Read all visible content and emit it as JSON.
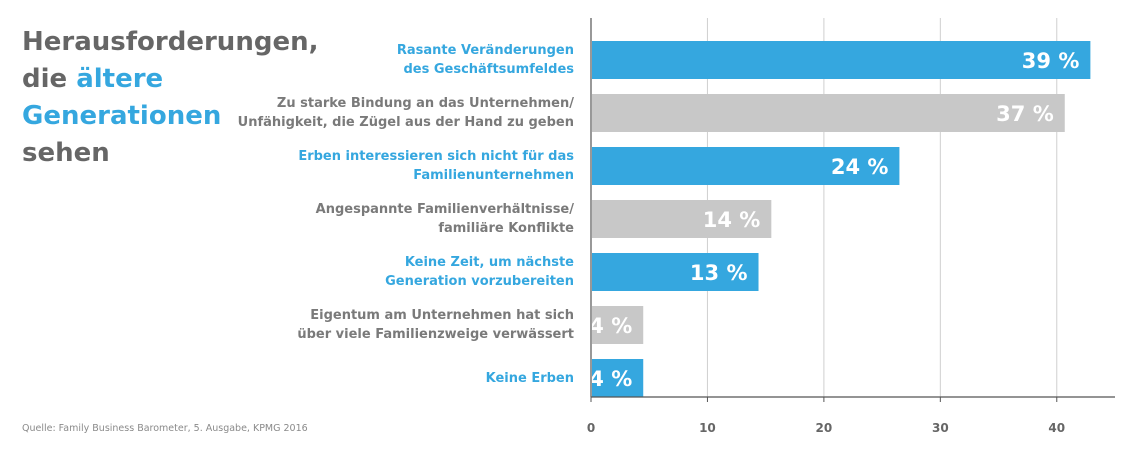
{
  "title": {
    "line1": "Herausforderungen,",
    "line2_prefix": "die ",
    "line2_accent": "ältere",
    "line3": "Generationen",
    "line4": "sehen"
  },
  "source": "Quelle: Family Business Barometer, 5. Ausgabe, KPMG 2016",
  "colors": {
    "blue": "#35a7df",
    "gray": "#c8c8c8",
    "label_gray": "#7a7a7a",
    "axis": "#555555"
  },
  "chart_data": {
    "type": "bar",
    "orientation": "horizontal",
    "title": "Herausforderungen, die ältere Generationen sehen",
    "xlim": [
      0,
      45
    ],
    "xticks": [
      0,
      10,
      20,
      30,
      40
    ],
    "xlabel": "",
    "ylabel": "",
    "bars": [
      {
        "label_lines": [
          "Rasante Veränderungen",
          "des Geschäftsumfeldes"
        ],
        "value": 39,
        "display": "39 %",
        "color": "blue",
        "bar_value": 42.8
      },
      {
        "label_lines": [
          "Zu starke Bindung an das Unternehmen/",
          "Unfähigkeit, die Zügel aus der Hand zu geben"
        ],
        "value": 37,
        "display": "37 %",
        "color": "gray",
        "bar_value": 40.6
      },
      {
        "label_lines": [
          "Erben interessieren sich nicht für das",
          "Familienunternehmen"
        ],
        "value": 24,
        "display": "24 %",
        "color": "blue",
        "bar_value": 26.4
      },
      {
        "label_lines": [
          "Angespannte Familienverhältnisse/",
          "familiäre Konflikte"
        ],
        "value": 14,
        "display": "14 %",
        "color": "gray",
        "bar_value": 15.4
      },
      {
        "label_lines": [
          "Keine Zeit, um nächste",
          "Generation vorzubereiten"
        ],
        "value": 13,
        "display": "13 %",
        "color": "blue",
        "bar_value": 14.3
      },
      {
        "label_lines": [
          "Eigentum am Unternehmen hat sich",
          "über viele Familienzweige verwässert"
        ],
        "value": 4,
        "display": "4 %",
        "color": "gray",
        "bar_value": 4.4
      },
      {
        "label_lines": [
          "Keine Erben"
        ],
        "value": 4,
        "display": "4 %",
        "color": "blue",
        "bar_value": 4.4
      }
    ]
  }
}
